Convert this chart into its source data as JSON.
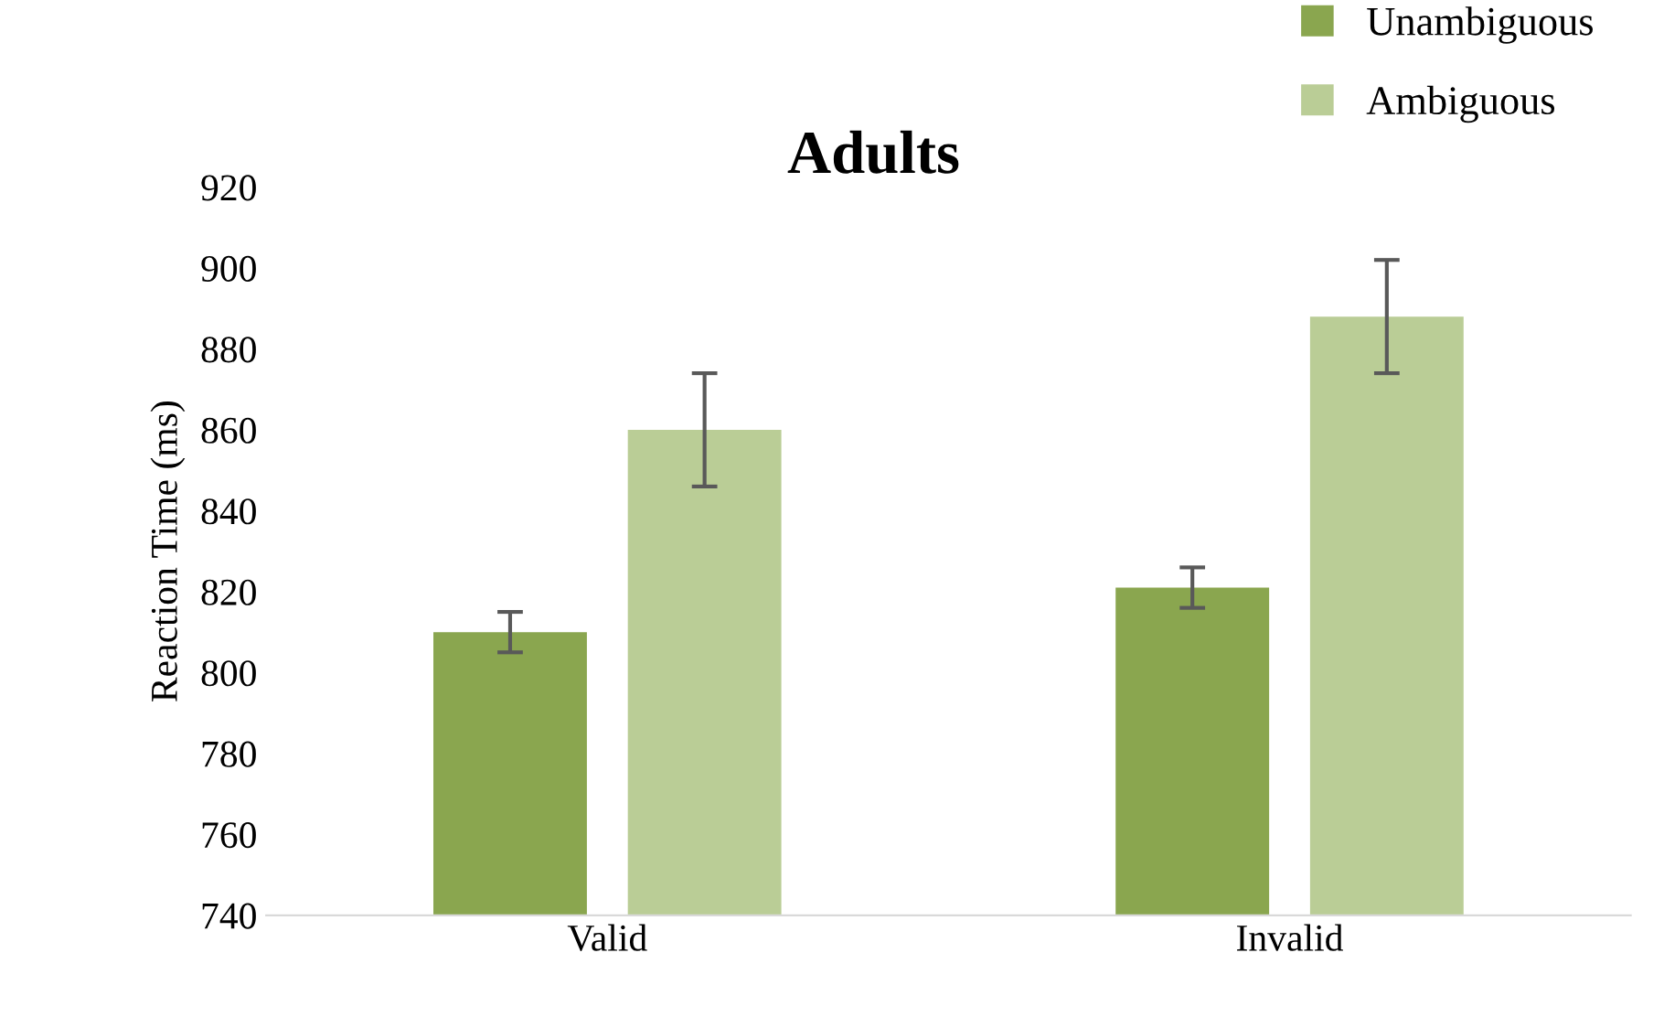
{
  "chart_data": {
    "type": "bar",
    "title": "Adults",
    "ylabel": "Reaction Time (ms)",
    "categories": [
      "Valid",
      "Invalid"
    ],
    "series": [
      {
        "name": "Unambiguous",
        "color": "#8aa64f",
        "values": [
          810,
          821
        ],
        "errors": [
          5,
          5
        ]
      },
      {
        "name": "Ambiguous",
        "color": "#bacd96",
        "values": [
          860,
          888
        ],
        "errors": [
          14,
          14
        ]
      }
    ],
    "ylim": [
      740,
      920
    ],
    "yticks": [
      740,
      760,
      780,
      800,
      820,
      840,
      860,
      880,
      900,
      920
    ],
    "grid": false,
    "legend": "top right"
  }
}
